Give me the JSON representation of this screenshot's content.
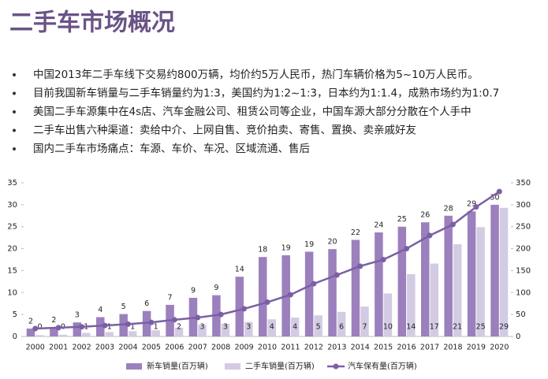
{
  "header": {
    "title": "二手车市场概况"
  },
  "bullets": [
    "中国2013年二手车线下交易约800万辆，均价约5万人民币，热门车辆价格为5~10万人民币。",
    "目前我国新车销量与二手车销量约为1:3，美国约为1:2~1:3，日本约为1:1.4，成熟市场约为1:0.7",
    "美国二手车源集中在4s店、汽车金融公司、租赁公司等企业，中国车源大部分分散在个人手中",
    "二手车出售六种渠道：卖给中介、上网自售、竞价拍卖、寄售、置换、卖亲戚好友",
    "国内二手车市场痛点：车源、车价、车况、区域流通、售后"
  ],
  "chart_data": {
    "type": "bar",
    "categories": [
      "2000",
      "2001",
      "2002",
      "2003",
      "2004",
      "2005",
      "2006",
      "2007",
      "2008",
      "2009",
      "2010",
      "2011",
      "2012",
      "2013",
      "2014",
      "2015",
      "2016",
      "2017",
      "2018",
      "2019",
      "2020"
    ],
    "series": [
      {
        "name": "新车销量(百万辆)",
        "type": "bar",
        "color": "#9b80bd",
        "values": [
          1.8,
          2.1,
          3.2,
          4.4,
          5.1,
          5.8,
          7.2,
          8.8,
          9.4,
          13.6,
          18.1,
          18.5,
          19.3,
          19.9,
          22.0,
          23.7,
          25.0,
          26.0,
          27.5,
          28.5,
          30.0
        ],
        "value_labels": [
          "2",
          "2",
          "3",
          "4",
          "5",
          "6",
          "7",
          "9",
          "9",
          "14",
          "18",
          "19",
          "19",
          "20",
          "22",
          "24",
          "25",
          "26",
          "28",
          "29",
          "30"
        ]
      },
      {
        "name": "二手车销量(百万辆)",
        "type": "bar",
        "color": "#d3cbe3",
        "values": [
          0.3,
          0.4,
          0.8,
          1.0,
          1.2,
          1.4,
          2.0,
          2.7,
          2.9,
          3.3,
          3.9,
          4.3,
          4.8,
          5.6,
          6.8,
          9.8,
          14.2,
          16.6,
          21.0,
          24.9,
          29.3
        ],
        "value_labels": [
          "0",
          "0",
          "1",
          "1",
          "1",
          "1",
          "2",
          "3",
          "3",
          "3",
          "4",
          "4",
          "5",
          "6",
          "7",
          "10",
          "14",
          "17",
          "21",
          "25",
          "29"
        ]
      },
      {
        "name": "汽车保有量(百万辆)",
        "type": "line",
        "axis": "y2",
        "color": "#7b5fa6",
        "values": [
          18,
          20,
          22,
          25,
          28,
          32,
          38,
          43,
          50,
          63,
          78,
          95,
          120,
          140,
          160,
          175,
          200,
          230,
          255,
          295,
          330
        ]
      }
    ],
    "ylim": [
      0,
      35
    ],
    "yticks": [
      0,
      5,
      10,
      15,
      20,
      25,
      30,
      35
    ],
    "y2lim": [
      0,
      350
    ],
    "y2ticks": [
      0,
      50,
      100,
      150,
      200,
      250,
      300,
      350
    ]
  }
}
